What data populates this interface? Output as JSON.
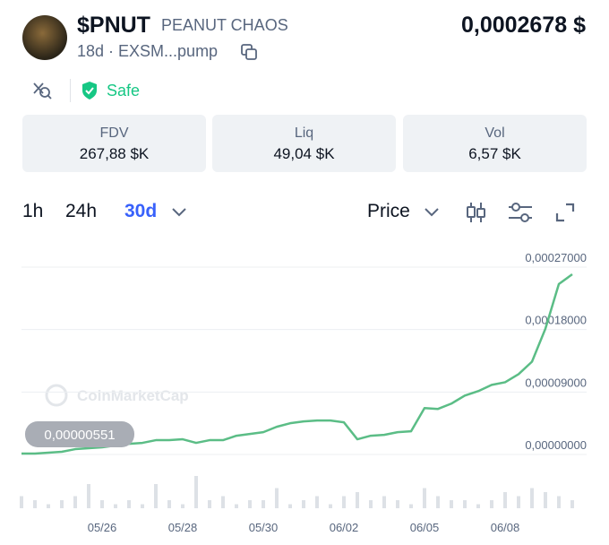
{
  "header": {
    "symbol": "$PNUT",
    "name": "PEANUT CHAOS",
    "meta": "18d · EXSM...pump",
    "price": "0,0002678 $",
    "badge": "Safe"
  },
  "stats": [
    {
      "label": "FDV",
      "value": "267,88 $K"
    },
    {
      "label": "Liq",
      "value": "49,04 $K"
    },
    {
      "label": "Vol",
      "value": "6,57 $K"
    }
  ],
  "tabs": {
    "intervals": [
      "1h",
      "24h",
      "30d"
    ],
    "selected": 2,
    "mode": "Price"
  },
  "chart_data": {
    "type": "line",
    "color": "#5bbd86",
    "grid": true,
    "watermark": "CoinMarketCap",
    "price_tag": "0,00000551",
    "categories": [
      null,
      null,
      null,
      null,
      null,
      null,
      "05/26",
      null,
      null,
      null,
      null,
      null,
      "05/28",
      null,
      null,
      null,
      null,
      null,
      "05/30",
      null,
      null,
      null,
      null,
      null,
      "06/02",
      null,
      null,
      null,
      null,
      null,
      "06/05",
      null,
      null,
      null,
      null,
      null,
      "06/08",
      null,
      null,
      null,
      null,
      null
    ],
    "values": [
      1.3e-06,
      1.3e-06,
      2.6e-06,
      3.9e-06,
      7.7e-06,
      9e-06,
      1.03e-05,
      1.29e-05,
      1.54e-05,
      1.67e-05,
      2.06e-05,
      2.06e-05,
      2.19e-05,
      1.67e-05,
      2.06e-05,
      2.06e-05,
      2.7e-05,
      2.96e-05,
      3.21e-05,
      3.99e-05,
      4.5e-05,
      4.76e-05,
      4.89e-05,
      4.89e-05,
      4.63e-05,
      2.19e-05,
      2.7e-05,
      2.83e-05,
      3.21e-05,
      3.34e-05,
      6.69e-05,
      6.56e-05,
      7.33e-05,
      8.49e-05,
      9.13e-05,
      0.0001003,
      0.0001041,
      0.0001157,
      0.0001337,
      0.0001813,
      0.0002456,
      0.0002597
    ],
    "volume": [
      3,
      2,
      1,
      2,
      3,
      6,
      2,
      1,
      2,
      1,
      6,
      2,
      1,
      8,
      2,
      3,
      1,
      2,
      2,
      5,
      1,
      2,
      3,
      1,
      3,
      4,
      2,
      3,
      2,
      1,
      5,
      3,
      2,
      2,
      1,
      2,
      4,
      3,
      5,
      4,
      3,
      2
    ],
    "ylim": [
      0,
      0.00027
    ],
    "yticks": [
      {
        "value": 0,
        "label": "0,00000000"
      },
      {
        "value": 9e-05,
        "label": "0,00009000"
      },
      {
        "value": 0.00018,
        "label": "0,00018000"
      },
      {
        "value": 0.00027,
        "label": "0,00027000"
      }
    ]
  }
}
